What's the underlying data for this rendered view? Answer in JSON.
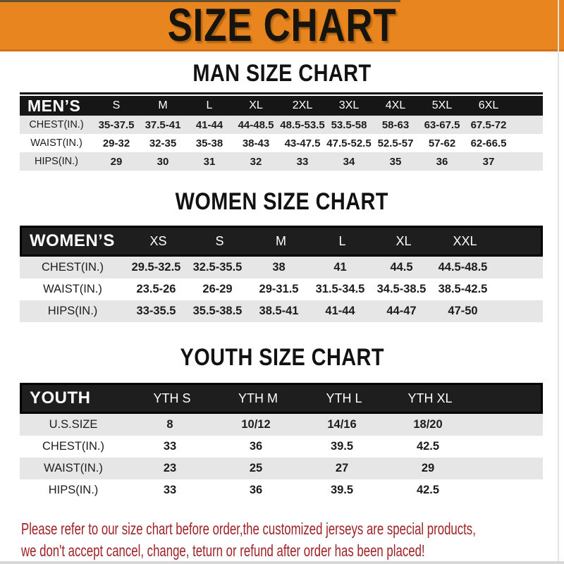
{
  "banner": {
    "title": "SIZE CHART"
  },
  "chart_data": [
    {
      "type": "table",
      "title": "MAN SIZE CHART",
      "header_label": "MEN’S",
      "columns": [
        "S",
        "M",
        "L",
        "XL",
        "2XL",
        "3XL",
        "4XL",
        "5XL",
        "6XL"
      ],
      "rows": [
        {
          "label": "CHEST(IN.)",
          "values": [
            "35-37.5",
            "37.5-41",
            "41-44",
            "44-48.5",
            "48.5-53.5",
            "53.5-58",
            "58-63",
            "63-67.5",
            "67.5-72"
          ]
        },
        {
          "label": "WAIST(IN.)",
          "values": [
            "29-32",
            "32-35",
            "35-38",
            "38-43",
            "43-47.5",
            "47.5-52.5",
            "52.5-57",
            "57-62",
            "62-66.5"
          ]
        },
        {
          "label": "HIPS(IN.)",
          "values": [
            "29",
            "30",
            "31",
            "32",
            "33",
            "34",
            "35",
            "36",
            "37"
          ]
        }
      ]
    },
    {
      "type": "table",
      "title": "WOMEN SIZE CHART",
      "header_label": "WOMEN’S",
      "columns": [
        "XS",
        "S",
        "M",
        "L",
        "XL",
        "XXL"
      ],
      "rows": [
        {
          "label": "CHEST(IN.)",
          "values": [
            "29.5-32.5",
            "32.5-35.5",
            "38",
            "41",
            "44.5",
            "44.5-48.5"
          ]
        },
        {
          "label": "WAIST(IN.)",
          "values": [
            "23.5-26",
            "26-29",
            "29-31.5",
            "31.5-34.5",
            "34.5-38.5",
            "38.5-42.5"
          ]
        },
        {
          "label": "HIPS(IN.)",
          "values": [
            "33-35.5",
            "35.5-38.5",
            "38.5-41",
            "41-44",
            "44-47",
            "47-50"
          ]
        }
      ]
    },
    {
      "type": "table",
      "title": "YOUTH SIZE CHART",
      "header_label": "YOUTH",
      "columns": [
        "YTH S",
        "YTH M",
        "YTH L",
        "YTH XL"
      ],
      "rows": [
        {
          "label": "U.S.SIZE",
          "values": [
            "8",
            "10/12",
            "14/16",
            "18/20"
          ]
        },
        {
          "label": "CHEST(IN.)",
          "values": [
            "33",
            "36",
            "39.5",
            "42.5"
          ]
        },
        {
          "label": "WAIST(IN.)",
          "values": [
            "23",
            "25",
            "27",
            "29"
          ]
        },
        {
          "label": "HIPS(IN.)",
          "values": [
            "33",
            "36",
            "39.5",
            "42.5"
          ]
        }
      ]
    }
  ],
  "footer": {
    "line1": "Please refer to our size chart before order,the customized jerseys are special products,",
    "line2": "we don't accept cancel, change, teturn or refund after order has been placed!"
  },
  "colors": {
    "banner_orange": "#E8851E",
    "header_black": "#1A1A1A",
    "row_gray": "#E6E6E6",
    "footer_red": "#9E2227"
  }
}
